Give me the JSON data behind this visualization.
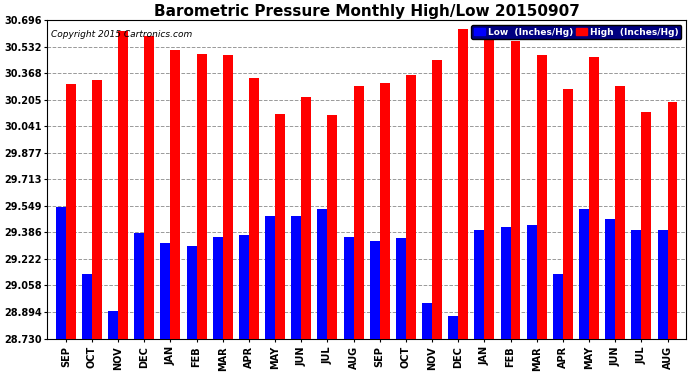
{
  "title": "Barometric Pressure Monthly High/Low 20150907",
  "copyright": "Copyright 2015 Cartronics.com",
  "months": [
    "SEP",
    "OCT",
    "NOV",
    "DEC",
    "JAN",
    "FEB",
    "MAR",
    "APR",
    "MAY",
    "JUN",
    "JUL",
    "AUG",
    "SEP",
    "OCT",
    "NOV",
    "DEC",
    "JAN",
    "FEB",
    "MAR",
    "APR",
    "MAY",
    "JUN",
    "JUL",
    "AUG"
  ],
  "high_values": [
    30.3,
    30.33,
    30.63,
    30.6,
    30.51,
    30.49,
    30.48,
    30.34,
    30.12,
    30.22,
    30.11,
    30.29,
    30.31,
    30.36,
    30.45,
    30.64,
    30.66,
    30.57,
    30.48,
    30.27,
    30.47,
    30.29,
    30.13,
    30.19
  ],
  "low_values": [
    29.54,
    29.13,
    28.9,
    29.38,
    29.32,
    29.3,
    29.36,
    29.37,
    29.49,
    29.49,
    29.53,
    29.36,
    29.33,
    29.35,
    28.95,
    28.87,
    29.4,
    29.42,
    29.43,
    29.13,
    29.53,
    29.47,
    29.4,
    29.4
  ],
  "ylim_min": 28.73,
  "ylim_max": 30.696,
  "yticks": [
    28.73,
    28.894,
    29.058,
    29.222,
    29.386,
    29.549,
    29.713,
    29.877,
    30.041,
    30.205,
    30.368,
    30.532,
    30.696
  ],
  "bar_width": 0.38,
  "high_color": "#ff0000",
  "low_color": "#0000ff",
  "bg_color": "#ffffff",
  "grid_color": "#999999",
  "title_fontsize": 11,
  "tick_fontsize": 7,
  "legend_low_label": "Low  (Inches/Hg)",
  "legend_high_label": "High  (Inches/Hg)"
}
